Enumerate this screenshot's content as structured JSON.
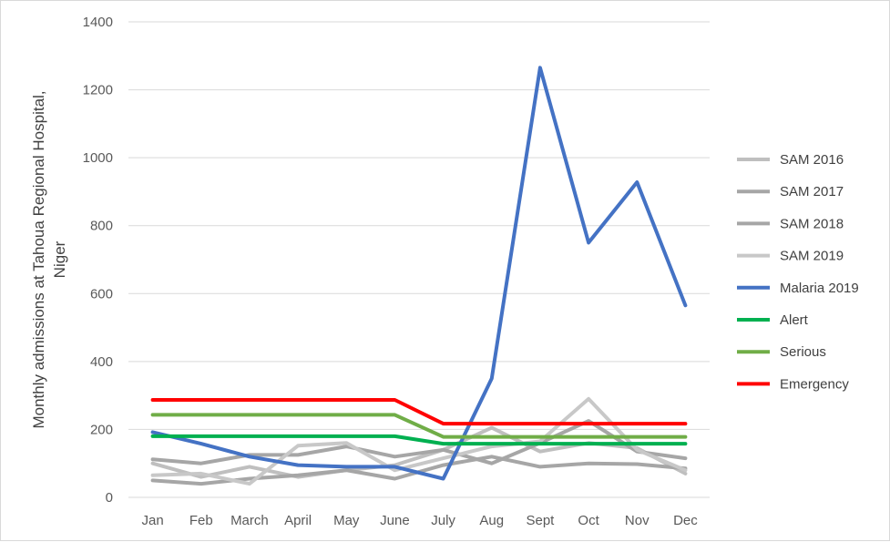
{
  "chart_data": {
    "type": "line",
    "title": "",
    "xlabel": "",
    "ylabel": [
      "Monthly admissions at Tahoua Regional Hospital,",
      "Niger"
    ],
    "categories": [
      "Jan",
      "Feb",
      "March",
      "April",
      "May",
      "June",
      "July",
      "Aug",
      "Sept",
      "Oct",
      "Nov",
      "Dec"
    ],
    "ylim": [
      0,
      1400
    ],
    "yticks": [
      0,
      200,
      400,
      600,
      800,
      1000,
      1200,
      1400
    ],
    "grid": true,
    "legend_position": "right",
    "series": [
      {
        "name": "SAM 2016",
        "color": "#bfbfbf",
        "values": [
          100,
          60,
          90,
          60,
          80,
          95,
          140,
          205,
          135,
          160,
          145,
          70
        ]
      },
      {
        "name": "SAM 2017",
        "color": "#a6a6a6",
        "values": [
          112,
          100,
          125,
          125,
          150,
          120,
          140,
          100,
          160,
          225,
          135,
          115
        ]
      },
      {
        "name": "SAM 2018",
        "color": "#a6a6a6",
        "values": [
          50,
          40,
          55,
          65,
          80,
          55,
          95,
          120,
          90,
          100,
          98,
          85
        ]
      },
      {
        "name": "SAM 2019",
        "color": "#c8c8c8",
        "values": [
          65,
          70,
          40,
          152,
          160,
          80,
          115,
          150,
          165,
          290,
          140,
          80
        ]
      },
      {
        "name": "Malaria 2019",
        "color": "#4472c4",
        "values": [
          192,
          158,
          120,
          95,
          90,
          90,
          55,
          350,
          1265,
          750,
          928,
          565
        ]
      },
      {
        "name": "Alert",
        "color": "#00b050",
        "values": [
          180,
          180,
          180,
          180,
          180,
          180,
          158,
          158,
          158,
          158,
          158,
          158
        ]
      },
      {
        "name": "Serious",
        "color": "#70ad47",
        "values": [
          243,
          243,
          243,
          243,
          243,
          243,
          178,
          178,
          178,
          178,
          178,
          178
        ]
      },
      {
        "name": "Emergency",
        "color": "#ff0000",
        "values": [
          287,
          287,
          287,
          287,
          287,
          287,
          217,
          217,
          217,
          217,
          217,
          217
        ]
      }
    ]
  }
}
